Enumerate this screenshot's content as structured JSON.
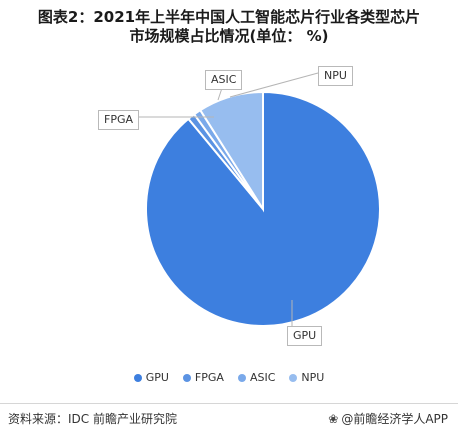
{
  "title": {
    "line1": "图表2：2021年上半年中国人工智能芯片行业各类型芯片",
    "line2": "市场规模占比情况(单位： %)"
  },
  "chart_data": {
    "type": "pie",
    "categories": [
      "GPU",
      "FPGA",
      "ASIC",
      "NPU"
    ],
    "values": [
      89.0,
      1.0,
      1.0,
      9.0
    ],
    "colors": [
      "#3d7fdf",
      "#5b93e3",
      "#7aa9ea",
      "#97bdef"
    ],
    "legend": "bottom",
    "start": "top, clockwise"
  },
  "labels": {
    "gpu": "GPU",
    "fpga": "FPGA",
    "asic": "ASIC",
    "npu": "NPU"
  },
  "legend": [
    {
      "label": "GPU",
      "color": "#3d7fdf"
    },
    {
      "label": "FPGA",
      "color": "#5b93e3"
    },
    {
      "label": "ASIC",
      "color": "#7aa9ea"
    },
    {
      "label": "NPU",
      "color": "#97bdef"
    }
  ],
  "footer": {
    "source": "资料来源：IDC 前瞻产业研究院",
    "brand_icon": "paw-icon",
    "brand": "@前瞻经济学人APP"
  }
}
